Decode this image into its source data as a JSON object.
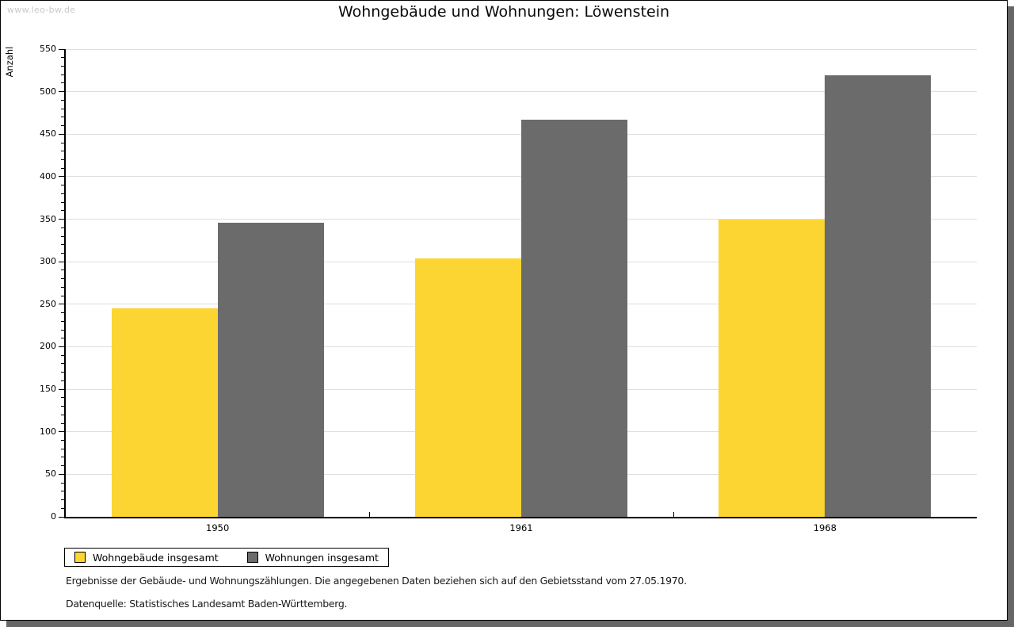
{
  "watermark": "www.leo-bw.de",
  "title": "Wohngebäude und Wohnungen: Löwenstein",
  "footer": {
    "line1": "Ergebnisse der Gebäude- und Wohnungszählungen. Die angegebenen Daten beziehen sich auf den Gebietsstand vom 27.05.1970.",
    "line2": "Datenquelle: Statistisches Landesamt Baden-Württemberg."
  },
  "chart_data": {
    "type": "bar",
    "title": "Wohngebäude und Wohnungen: Löwenstein",
    "xlabel": "",
    "ylabel": "Anzahl",
    "categories": [
      "1950",
      "1961",
      "1968"
    ],
    "series": [
      {
        "name": "Wohngebäude insgesamt",
        "color": "#FDD532",
        "values": [
          245,
          304,
          350
        ]
      },
      {
        "name": "Wohnungen insgesamt",
        "color": "#6B6B6B",
        "values": [
          346,
          467,
          519
        ]
      }
    ],
    "ylim": [
      0,
      550
    ],
    "ytick_step": 50,
    "yminor_step": 10,
    "grid": true,
    "gridline_color": "#dedede",
    "legend_position": "bottom-left"
  }
}
